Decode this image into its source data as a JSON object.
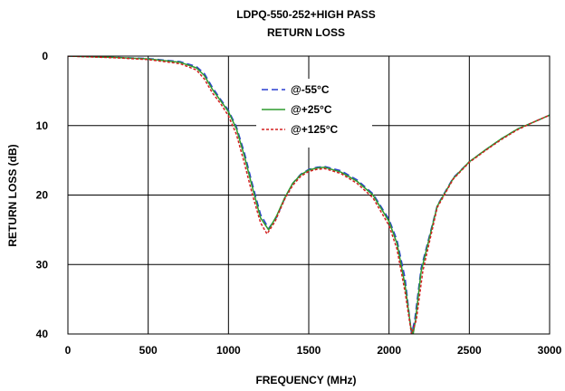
{
  "chart_data": {
    "type": "line",
    "title": "LDPQ-550-252+HIGH PASS",
    "subtitle": "RETURN LOSS",
    "xlabel": "FREQUENCY (MHz)",
    "ylabel": "RETURN LOSS (dB)",
    "xlim": [
      0,
      3000
    ],
    "ylim": [
      0,
      40
    ],
    "y_inverted": true,
    "x_ticks": [
      0,
      500,
      1000,
      1500,
      2000,
      2500,
      3000
    ],
    "y_ticks": [
      0,
      10,
      20,
      30,
      40
    ],
    "grid": true,
    "legend_position": "center",
    "series": [
      {
        "name": "@-55°C",
        "color": "#2a3fd1",
        "dash": "dashed",
        "points": [
          [
            0,
            0
          ],
          [
            300,
            0.2
          ],
          [
            500,
            0.35
          ],
          [
            700,
            0.8
          ],
          [
            800,
            1.5
          ],
          [
            850,
            2.5
          ],
          [
            900,
            4.5
          ],
          [
            950,
            6.2
          ],
          [
            1000,
            7.8
          ],
          [
            1050,
            10.2
          ],
          [
            1100,
            14.0
          ],
          [
            1150,
            18.5
          ],
          [
            1200,
            22.8
          ],
          [
            1250,
            24.8
          ],
          [
            1300,
            23.2
          ],
          [
            1350,
            20.5
          ],
          [
            1400,
            18.3
          ],
          [
            1450,
            17.0
          ],
          [
            1500,
            16.3
          ],
          [
            1550,
            16.0
          ],
          [
            1600,
            15.9
          ],
          [
            1700,
            16.5
          ],
          [
            1800,
            17.8
          ],
          [
            1900,
            19.8
          ],
          [
            2000,
            23.5
          ],
          [
            2050,
            26.5
          ],
          [
            2100,
            32.0
          ],
          [
            2130,
            38.0
          ],
          [
            2140,
            40.0
          ],
          [
            2160,
            38.0
          ],
          [
            2200,
            30.5
          ],
          [
            2300,
            21.5
          ],
          [
            2400,
            17.5
          ],
          [
            2500,
            15.2
          ],
          [
            2600,
            13.5
          ],
          [
            2700,
            11.9
          ],
          [
            2800,
            10.5
          ],
          [
            2900,
            9.5
          ],
          [
            3000,
            8.5
          ]
        ]
      },
      {
        "name": "@+25°C",
        "color": "#2e9b2e",
        "dash": "solid",
        "points": [
          [
            0,
            0
          ],
          [
            300,
            0.2
          ],
          [
            500,
            0.4
          ],
          [
            700,
            0.9
          ],
          [
            800,
            1.7
          ],
          [
            850,
            2.8
          ],
          [
            900,
            4.8
          ],
          [
            950,
            6.4
          ],
          [
            1000,
            8.0
          ],
          [
            1050,
            10.5
          ],
          [
            1100,
            14.5
          ],
          [
            1150,
            19.0
          ],
          [
            1200,
            23.3
          ],
          [
            1250,
            25.0
          ],
          [
            1300,
            23.0
          ],
          [
            1350,
            20.4
          ],
          [
            1400,
            18.3
          ],
          [
            1450,
            17.1
          ],
          [
            1500,
            16.4
          ],
          [
            1550,
            16.1
          ],
          [
            1600,
            16.0
          ],
          [
            1700,
            16.7
          ],
          [
            1800,
            18.0
          ],
          [
            1900,
            20.0
          ],
          [
            2000,
            23.8
          ],
          [
            2050,
            27.0
          ],
          [
            2100,
            33.0
          ],
          [
            2135,
            39.0
          ],
          [
            2150,
            40.0
          ],
          [
            2165,
            38.0
          ],
          [
            2200,
            31.0
          ],
          [
            2300,
            21.6
          ],
          [
            2400,
            17.6
          ],
          [
            2500,
            15.2
          ],
          [
            2600,
            13.5
          ],
          [
            2700,
            11.9
          ],
          [
            2800,
            10.5
          ],
          [
            2900,
            9.5
          ],
          [
            3000,
            8.5
          ]
        ]
      },
      {
        "name": "@+125°C",
        "color": "#d42020",
        "dash": "dotted",
        "points": [
          [
            0,
            0
          ],
          [
            300,
            0.25
          ],
          [
            500,
            0.5
          ],
          [
            700,
            1.1
          ],
          [
            800,
            2.0
          ],
          [
            850,
            3.3
          ],
          [
            900,
            5.3
          ],
          [
            950,
            6.8
          ],
          [
            1000,
            8.6
          ],
          [
            1050,
            11.3
          ],
          [
            1100,
            15.5
          ],
          [
            1150,
            20.0
          ],
          [
            1200,
            24.0
          ],
          [
            1240,
            25.6
          ],
          [
            1290,
            23.8
          ],
          [
            1350,
            20.6
          ],
          [
            1400,
            18.6
          ],
          [
            1450,
            17.3
          ],
          [
            1500,
            16.6
          ],
          [
            1550,
            16.3
          ],
          [
            1600,
            16.2
          ],
          [
            1700,
            16.9
          ],
          [
            1800,
            18.3
          ],
          [
            1900,
            20.4
          ],
          [
            2000,
            24.4
          ],
          [
            2050,
            27.8
          ],
          [
            2100,
            34.0
          ],
          [
            2140,
            40.0
          ],
          [
            2170,
            38.0
          ],
          [
            2210,
            31.0
          ],
          [
            2300,
            21.8
          ],
          [
            2400,
            17.7
          ],
          [
            2500,
            15.3
          ],
          [
            2600,
            13.6
          ],
          [
            2700,
            12.0
          ],
          [
            2800,
            10.6
          ],
          [
            2900,
            9.5
          ],
          [
            3000,
            8.5
          ]
        ]
      }
    ]
  }
}
